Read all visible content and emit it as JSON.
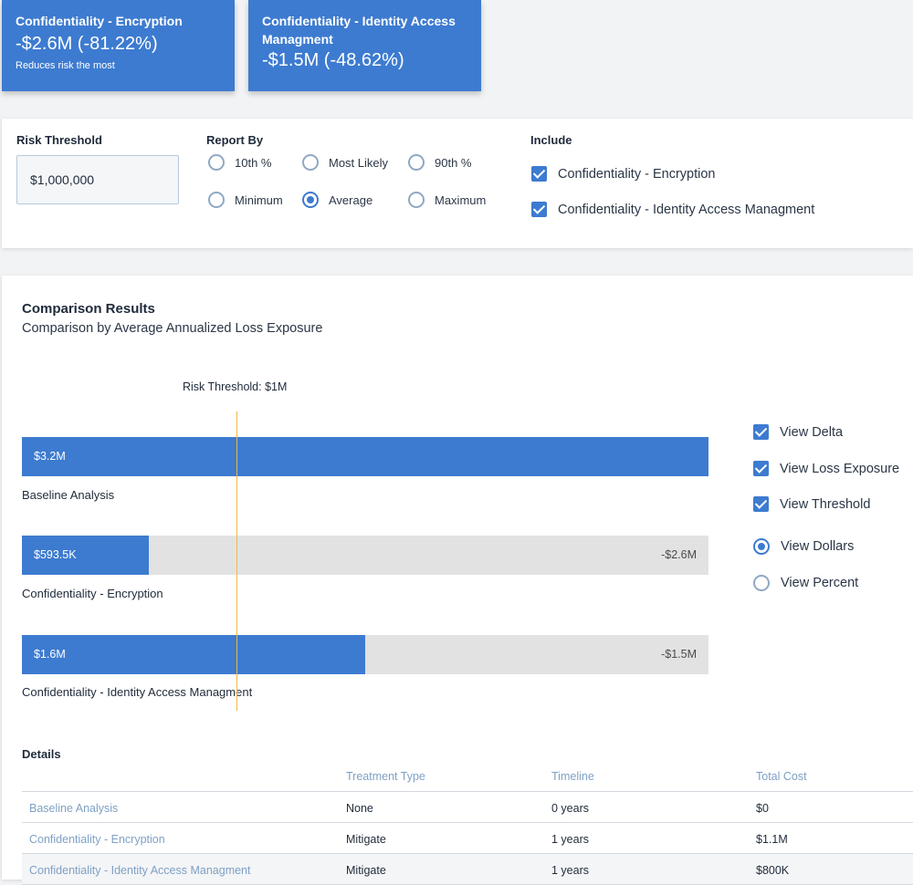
{
  "cards": [
    {
      "title": "Confidentiality - Encryption",
      "value": "-$2.6M (-81.22%)",
      "note": "Reduces risk the most"
    },
    {
      "title": "Confidentiality - Identity Access Managment",
      "value": "-$1.5M (-48.62%)"
    }
  ],
  "settings": {
    "risk_threshold_label": "Risk Threshold",
    "risk_threshold_value": "$1,000,000",
    "report_by_label": "Report By",
    "report_options": [
      "10th %",
      "Most Likely",
      "90th %",
      "Minimum",
      "Average",
      "Maximum"
    ],
    "report_selected": "Average",
    "include_label": "Include",
    "include_items": [
      "Confidentiality - Encryption",
      "Confidentiality - Identity Access Managment"
    ]
  },
  "results": {
    "title": "Comparison Results",
    "subtitle": "Comparison by Average Annualized Loss Exposure",
    "threshold_label": "Risk Threshold: $1M",
    "threshold_value": 1.0,
    "bars": [
      {
        "name": "Baseline Analysis",
        "value": 3.2,
        "value_label": "$3.2M",
        "delta_label": ""
      },
      {
        "name": "Confidentiality - Encryption",
        "value": 0.5935,
        "value_label": "$593.5K",
        "delta_label": "-$2.6M"
      },
      {
        "name": "Confidentiality - Identity Access Managment",
        "value": 1.6,
        "value_label": "$1.6M",
        "delta_label": "-$1.5M"
      }
    ],
    "view_options": {
      "delta": "View Delta",
      "loss_exposure": "View Loss Exposure",
      "threshold": "View Threshold",
      "dollars": "View Dollars",
      "percent": "View Percent"
    }
  },
  "details": {
    "title": "Details",
    "columns": [
      "",
      "Treatment Type",
      "Timeline",
      "Total Cost"
    ],
    "rows": [
      [
        "Baseline Analysis",
        "None",
        "0 years",
        "$0"
      ],
      [
        "Confidentiality - Encryption",
        "Mitigate",
        "1 years",
        "$1.1M"
      ],
      [
        "Confidentiality - Identity Access Managment",
        "Mitigate",
        "1 years",
        "$800K"
      ]
    ]
  },
  "colors": {
    "accent": "#3d7bd0",
    "threshold": "#f0b840",
    "track": "#e2e2e2"
  }
}
